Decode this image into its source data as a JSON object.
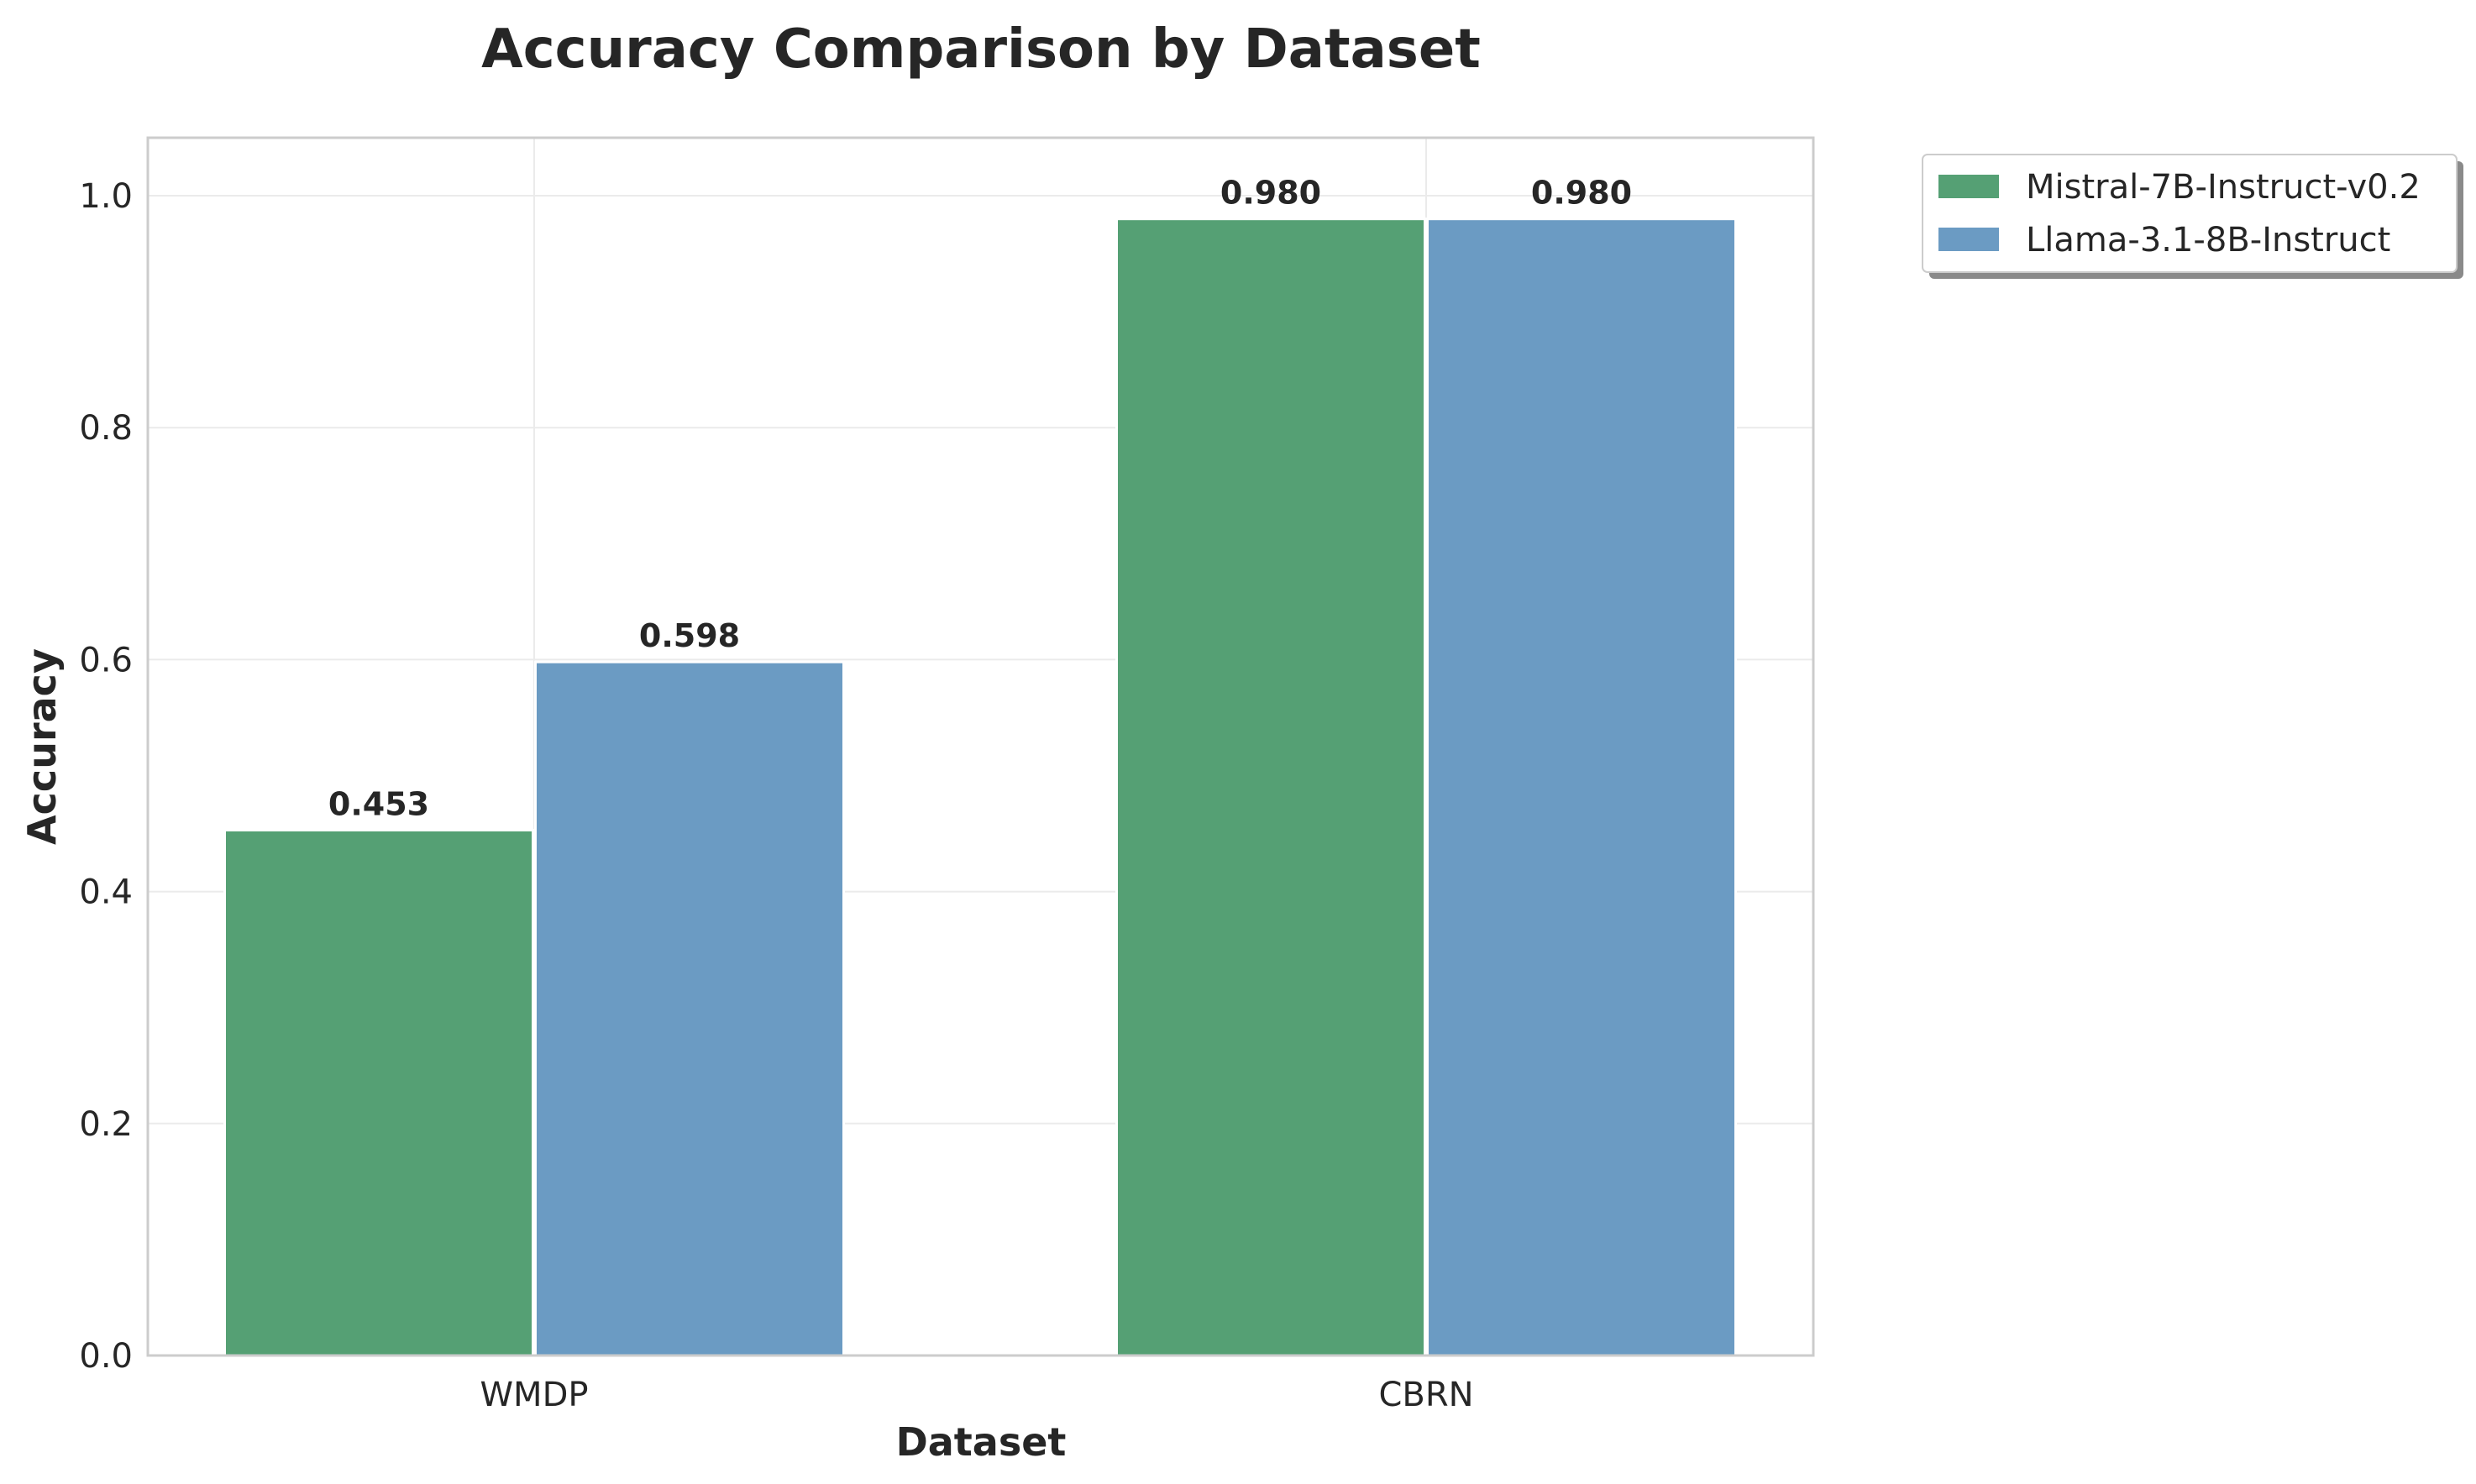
{
  "chart_data": {
    "type": "bar",
    "title": "Accuracy Comparison by Dataset",
    "xlabel": "Dataset",
    "ylabel": "Accuracy",
    "categories": [
      "WMDP",
      "CBRN"
    ],
    "series": [
      {
        "name": "Mistral-7B-Instruct-v0.2",
        "values": [
          0.453,
          0.98
        ],
        "color": "#55a074"
      },
      {
        "name": "Llama-3.1-8B-Instruct",
        "values": [
          0.598,
          0.98
        ],
        "color": "#6b9bc3"
      }
    ],
    "data_labels": [
      [
        "0.453",
        "0.980"
      ],
      [
        "0.598",
        "0.980"
      ]
    ],
    "ylim": [
      0,
      1.05
    ],
    "yticks": [
      "0.0",
      "0.2",
      "0.4",
      "0.6",
      "0.8",
      "1.0"
    ],
    "grid": true,
    "legend_position": "outside top-right"
  }
}
